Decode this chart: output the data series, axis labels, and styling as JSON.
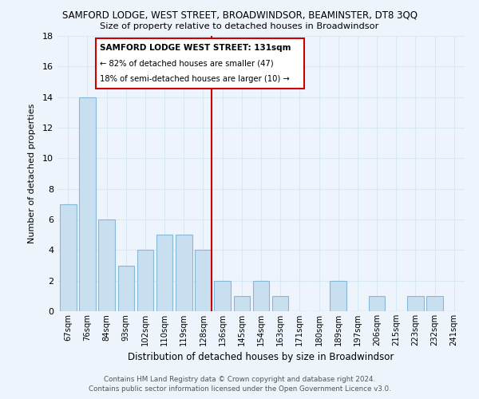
{
  "title": "SAMFORD LODGE, WEST STREET, BROADWINDSOR, BEAMINSTER, DT8 3QQ",
  "subtitle": "Size of property relative to detached houses in Broadwindsor",
  "xlabel": "Distribution of detached houses by size in Broadwindsor",
  "ylabel": "Number of detached properties",
  "bar_labels": [
    "67sqm",
    "76sqm",
    "84sqm",
    "93sqm",
    "102sqm",
    "110sqm",
    "119sqm",
    "128sqm",
    "136sqm",
    "145sqm",
    "154sqm",
    "163sqm",
    "171sqm",
    "180sqm",
    "189sqm",
    "197sqm",
    "206sqm",
    "215sqm",
    "223sqm",
    "232sqm",
    "241sqm"
  ],
  "bar_values": [
    7,
    14,
    6,
    3,
    4,
    5,
    5,
    4,
    2,
    1,
    2,
    1,
    0,
    0,
    2,
    0,
    1,
    0,
    1,
    1,
    0
  ],
  "bar_color": "#c8dff0",
  "bar_edge_color": "#88b8d8",
  "ylim": [
    0,
    18
  ],
  "yticks": [
    0,
    2,
    4,
    6,
    8,
    10,
    12,
    14,
    16,
    18
  ],
  "annotation_title": "SAMFORD LODGE WEST STREET: 131sqm",
  "annotation_line1": "← 82% of detached houses are smaller (47)",
  "annotation_line2": "18% of semi-detached houses are larger (10) →",
  "footer_line1": "Contains HM Land Registry data © Crown copyright and database right 2024.",
  "footer_line2": "Contains public sector information licensed under the Open Government Licence v3.0.",
  "bg_color": "#eef4fb",
  "grid_color": "#d8e8f4",
  "annotation_box_color": "#ffffff",
  "annotation_box_edge": "#cc0000",
  "vline_color": "#cc0000",
  "vline_x_index": 7
}
